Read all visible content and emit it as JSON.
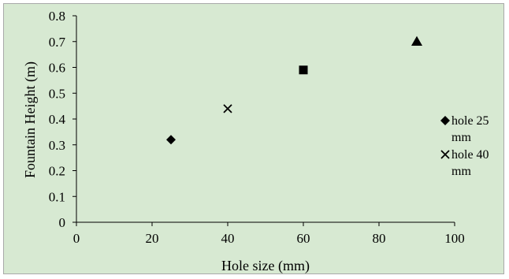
{
  "chart_data": {
    "type": "scatter",
    "title": "",
    "xlabel": "Hole size (mm)",
    "ylabel": "Fountain Height (m)",
    "xlim": [
      0,
      100
    ],
    "ylim": [
      0,
      0.8
    ],
    "xticks": [
      "0",
      "20",
      "40",
      "60",
      "80",
      "100"
    ],
    "yticks": [
      "0",
      "0.1",
      "0.2",
      "0.3",
      "0.4",
      "0.5",
      "0.6",
      "0.7",
      "0.8"
    ],
    "grid": false,
    "legend_position": "right",
    "series": [
      {
        "name": "hole 25 mm",
        "marker": "diamond",
        "points": [
          {
            "x": 25,
            "y": 0.32
          }
        ]
      },
      {
        "name": "hole 40 mm",
        "marker": "x",
        "points": [
          {
            "x": 40,
            "y": 0.44
          }
        ]
      },
      {
        "name": "",
        "marker": "square",
        "points": [
          {
            "x": 60,
            "y": 0.59
          }
        ]
      },
      {
        "name": "",
        "marker": "triangle",
        "points": [
          {
            "x": 90,
            "y": 0.7
          }
        ]
      }
    ],
    "legend": [
      {
        "marker": "diamond",
        "lines": [
          "hole 25",
          "mm"
        ]
      },
      {
        "marker": "x",
        "lines": [
          "hole 40",
          "mm"
        ]
      }
    ],
    "colors": {
      "background": "#d7e9d2",
      "marker": "#000000",
      "axis": "#000000"
    }
  }
}
